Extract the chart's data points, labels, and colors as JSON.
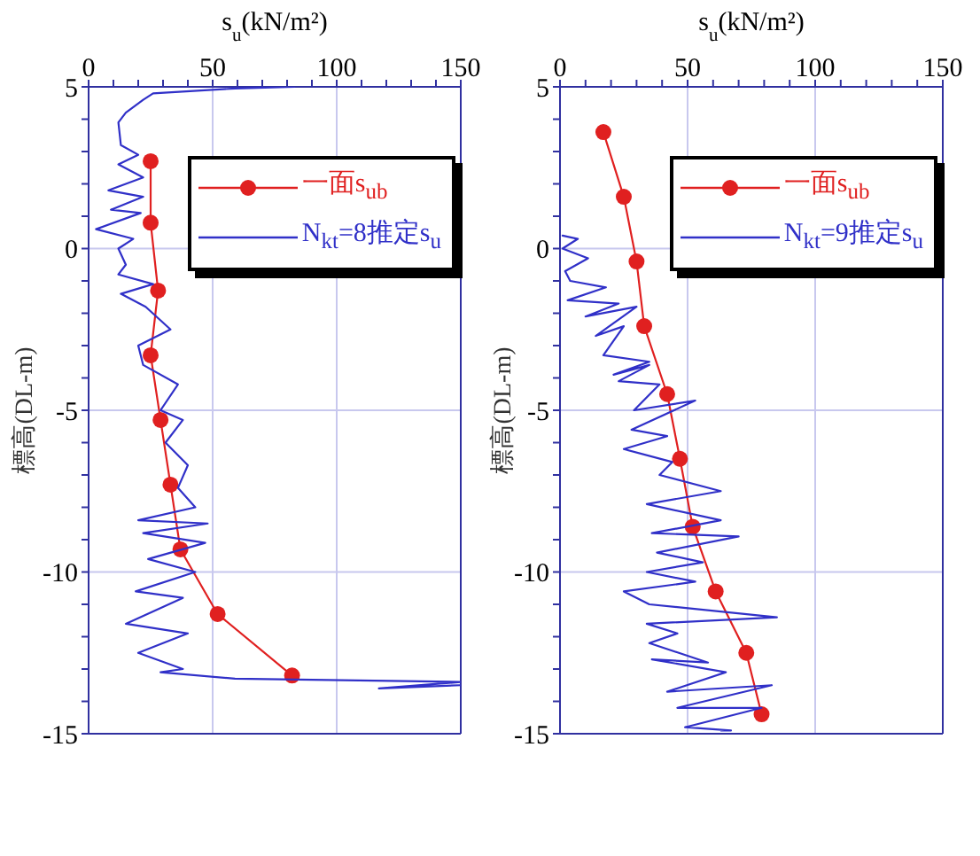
{
  "chart_data": [
    {
      "type": "line",
      "xlabel": "s$_{u}$(kN/m²)",
      "ylabel": "標高(DL-m)",
      "xlim": [
        0,
        150
      ],
      "xticks": [
        0,
        {
          "value": 10,
          "label": null
        },
        {
          "value": 20,
          "label": null
        },
        {
          "value": 30,
          "label": null
        },
        {
          "value": 40,
          "label": null
        },
        50,
        {
          "value": 60,
          "label": null
        },
        {
          "value": 70,
          "label": null
        },
        {
          "value": 80,
          "label": null
        },
        {
          "value": 90,
          "label": null
        },
        100,
        {
          "value": 110,
          "label": null
        },
        {
          "value": 120,
          "label": null
        },
        {
          "value": 130,
          "label": null
        },
        {
          "value": 140,
          "label": null
        },
        150
      ],
      "ylim": [
        -15,
        5
      ],
      "yticks": [
        -15,
        {
          "value": -14,
          "label": null
        },
        {
          "value": -13,
          "label": null
        },
        {
          "value": -12,
          "label": null
        },
        {
          "value": -11,
          "label": null
        },
        -10,
        {
          "value": -9,
          "label": null
        },
        {
          "value": -8,
          "label": null
        },
        {
          "value": -7,
          "label": null
        },
        {
          "value": -6,
          "label": null
        },
        -5,
        {
          "value": -4,
          "label": null
        },
        {
          "value": -3,
          "label": null
        },
        {
          "value": -2,
          "label": null
        },
        {
          "value": -1,
          "label": null
        },
        0,
        {
          "value": 1,
          "label": null
        },
        {
          "value": 2,
          "label": null
        },
        {
          "value": 3,
          "label": null
        },
        {
          "value": 4,
          "label": null
        },
        5
      ],
      "grid": true,
      "legend": "top right",
      "series": [
        {
          "name": "一面s$_{ub}$",
          "color": "#e02020",
          "marker": "circle",
          "x": [
            25,
            25,
            28,
            25,
            29,
            33,
            37,
            52,
            82
          ],
          "values": [
            2.7,
            0.8,
            -1.3,
            -3.3,
            -5.3,
            -7.3,
            -9.3,
            -11.3,
            -13.2
          ]
        },
        {
          "name": "N$_{kt}$=8推定s$_{u}$",
          "color": "#3030c8",
          "marker": "none",
          "x": [
            83,
            59,
            26,
            22,
            15,
            12,
            13,
            20,
            12,
            22,
            8,
            22,
            9,
            21,
            3,
            18,
            12,
            15,
            12,
            26,
            13,
            23,
            33,
            20,
            22,
            36,
            29,
            38,
            31,
            40,
            36,
            43,
            20,
            48,
            22,
            47,
            24,
            43,
            19,
            38,
            15,
            40,
            20,
            38,
            29,
            59,
            150,
            117,
            150
          ],
          "values": [
            5.0,
            4.95,
            4.8,
            4.6,
            4.2,
            3.9,
            3.2,
            2.9,
            2.6,
            2.2,
            1.8,
            1.6,
            1.2,
            1.1,
            0.6,
            0.3,
            0,
            -0.5,
            -0.8,
            -1.1,
            -1.4,
            -1.8,
            -2.5,
            -3.0,
            -3.6,
            -4.2,
            -5.0,
            -5.3,
            -6.0,
            -6.7,
            -7.4,
            -8.0,
            -8.4,
            -8.5,
            -8.8,
            -9.1,
            -9.6,
            -10.0,
            -10.6,
            -10.8,
            -11.6,
            -11.9,
            -12.5,
            -13.0,
            -13.1,
            -13.3,
            -13.4,
            -13.6,
            -13.5
          ]
        }
      ]
    },
    {
      "type": "line",
      "xlabel": "s$_{u}$(kN/m²)",
      "ylabel": "標高(DL-m)",
      "xlim": [
        0,
        150
      ],
      "xticks": [
        0,
        {
          "value": 10,
          "label": null
        },
        {
          "value": 20,
          "label": null
        },
        {
          "value": 30,
          "label": null
        },
        {
          "value": 40,
          "label": null
        },
        50,
        {
          "value": 60,
          "label": null
        },
        {
          "value": 70,
          "label": null
        },
        {
          "value": 80,
          "label": null
        },
        {
          "value": 90,
          "label": null
        },
        100,
        {
          "value": 110,
          "label": null
        },
        {
          "value": 120,
          "label": null
        },
        {
          "value": 130,
          "label": null
        },
        {
          "value": 140,
          "label": null
        },
        150
      ],
      "ylim": [
        -15,
        5
      ],
      "yticks": [
        -15,
        {
          "value": -14,
          "label": null
        },
        {
          "value": -13,
          "label": null
        },
        {
          "value": -12,
          "label": null
        },
        {
          "value": -11,
          "label": null
        },
        -10,
        {
          "value": -9,
          "label": null
        },
        {
          "value": -8,
          "label": null
        },
        {
          "value": -7,
          "label": null
        },
        {
          "value": -6,
          "label": null
        },
        -5,
        {
          "value": -4,
          "label": null
        },
        {
          "value": -3,
          "label": null
        },
        {
          "value": -2,
          "label": null
        },
        {
          "value": -1,
          "label": null
        },
        0,
        {
          "value": 1,
          "label": null
        },
        {
          "value": 2,
          "label": null
        },
        {
          "value": 3,
          "label": null
        },
        {
          "value": 4,
          "label": null
        },
        5
      ],
      "grid": true,
      "legend": "top right",
      "series": [
        {
          "name": "一面s$_{ub}$",
          "color": "#e02020",
          "marker": "circle",
          "x": [
            17,
            25,
            30,
            33,
            42,
            47,
            52,
            61,
            73,
            79
          ],
          "values": [
            3.6,
            1.6,
            -0.4,
            -2.4,
            -4.5,
            -6.5,
            -8.6,
            -10.6,
            -12.5,
            -14.4
          ]
        },
        {
          "name": "N$_{kt}$=9推定s$_{u}$",
          "color": "#3030c8",
          "marker": "none",
          "x": [
            1,
            7,
            1,
            11,
            2,
            4,
            18,
            3,
            23,
            10,
            30,
            14,
            25,
            17,
            35,
            21,
            35,
            23,
            39,
            29,
            53,
            28,
            42,
            25,
            44,
            39,
            63,
            34,
            63,
            36,
            70,
            38,
            56,
            34,
            53,
            25,
            35,
            85,
            34,
            46,
            35,
            58,
            36,
            65,
            42,
            83,
            46,
            79,
            49,
            67,
            63
          ],
          "values": [
            0.4,
            0.3,
            0,
            -0.3,
            -0.7,
            -1.0,
            -1.2,
            -1.6,
            -1.7,
            -2.1,
            -1.8,
            -2.7,
            -2.4,
            -3.3,
            -3.5,
            -3.9,
            -3.6,
            -4.1,
            -4.2,
            -5.0,
            -4.7,
            -5.6,
            -5.8,
            -6.2,
            -6.6,
            -7.0,
            -7.5,
            -7.9,
            -8.4,
            -8.8,
            -8.9,
            -9.4,
            -9.7,
            -10.0,
            -10.3,
            -10.6,
            -11.0,
            -11.4,
            -11.6,
            -11.9,
            -12.2,
            -12.8,
            -12.7,
            -13.1,
            -13.7,
            -13.5,
            -14.2,
            -14.2,
            -14.8,
            -14.9,
            -14.9
          ]
        }
      ]
    }
  ]
}
